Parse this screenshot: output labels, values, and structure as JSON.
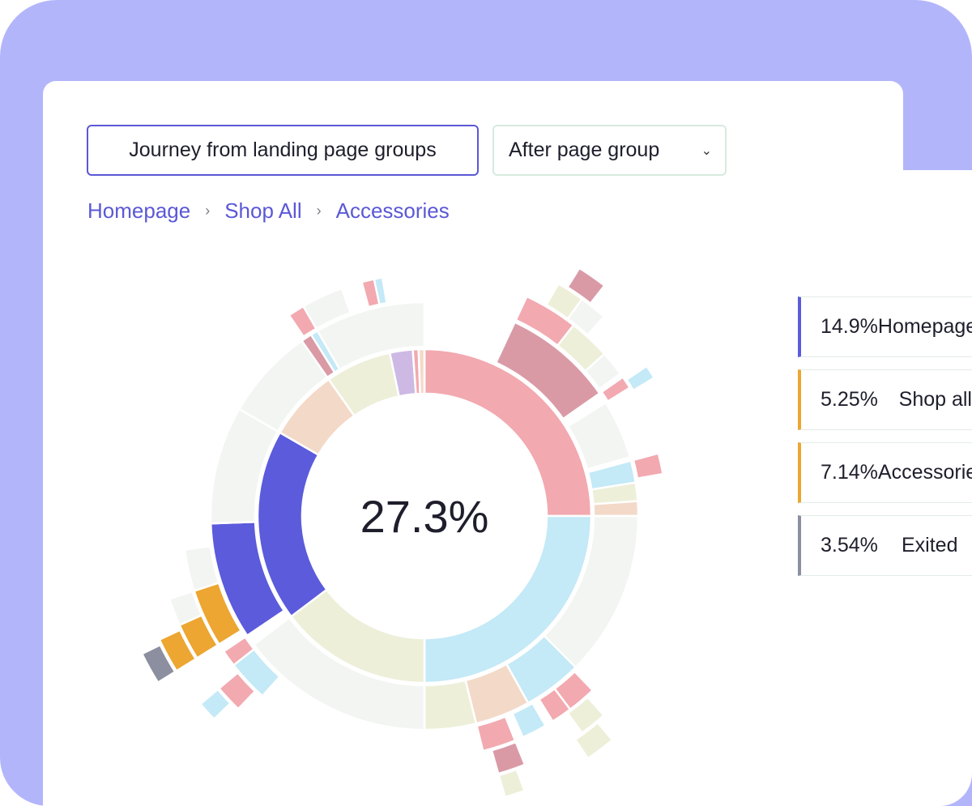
{
  "controls": {
    "journey_label": "Journey from landing page groups",
    "after_label": "After page group"
  },
  "breadcrumb": [
    "Homepage",
    "Shop All",
    "Accessories"
  ],
  "chart_data": {
    "type": "sunburst",
    "center_value": "27.3%",
    "colors": {
      "purple": "#5b5bdc",
      "orange": "#eca631",
      "pink": "#f2a9b0",
      "light_blue": "#c4e9f7",
      "cream": "#edefd9",
      "peach": "#f3d9c8",
      "mauve": "#d99aa6",
      "lavender": "#cdb9e4",
      "gray": "#8c8fa0",
      "faint": "#f2f5f1"
    },
    "legend": [
      {
        "value": "14.9%",
        "label": "Homepage",
        "color": "#5b5bdc"
      },
      {
        "value": "5.25%",
        "label": "Shop all",
        "color": "#eca631"
      },
      {
        "value": "7.14%",
        "label": "Accessories",
        "color": "#eca631"
      },
      {
        "value": "3.54%",
        "label": "Exited",
        "color": "#8c8fa0"
      }
    ],
    "rings": [
      [
        {
          "start": 0,
          "end": 90,
          "color": "pink"
        },
        {
          "start": 90,
          "end": 180,
          "color": "light_blue"
        },
        {
          "start": 180,
          "end": 233,
          "color": "cream"
        },
        {
          "start": 233,
          "end": 300,
          "color": "purple"
        },
        {
          "start": 300,
          "end": 325,
          "color": "peach"
        },
        {
          "start": 325,
          "end": 348,
          "color": "cream"
        },
        {
          "start": 348,
          "end": 356,
          "color": "lavender"
        },
        {
          "start": 356,
          "end": 358,
          "color": "pink"
        },
        {
          "start": 358,
          "end": 360,
          "color": "peach"
        }
      ],
      [
        {
          "start": 25,
          "end": 55,
          "color": "mauve"
        },
        {
          "start": 58,
          "end": 74,
          "color": "faint"
        },
        {
          "start": 75,
          "end": 81,
          "color": "light_blue"
        },
        {
          "start": 81,
          "end": 86,
          "color": "cream"
        },
        {
          "start": 86,
          "end": 90,
          "color": "peach"
        },
        {
          "start": 90,
          "end": 135,
          "color": "faint"
        },
        {
          "start": 135,
          "end": 151,
          "color": "light_blue"
        },
        {
          "start": 151,
          "end": 166,
          "color": "peach"
        },
        {
          "start": 166,
          "end": 180,
          "color": "cream"
        },
        {
          "start": 180,
          "end": 233,
          "color": "faint"
        },
        {
          "start": 236,
          "end": 268,
          "color": "purple"
        },
        {
          "start": 268,
          "end": 300,
          "color": "faint"
        },
        {
          "start": 300,
          "end": 325,
          "color": "faint"
        },
        {
          "start": 325,
          "end": 328,
          "color": "mauve"
        },
        {
          "start": 328,
          "end": 330,
          "color": "light_blue"
        },
        {
          "start": 330,
          "end": 360,
          "color": "faint"
        }
      ],
      [
        {
          "start": 25,
          "end": 38,
          "color": "pink"
        },
        {
          "start": 38,
          "end": 48,
          "color": "cream"
        },
        {
          "start": 48,
          "end": 54,
          "color": "faint"
        },
        {
          "start": 55,
          "end": 58,
          "color": "pink"
        },
        {
          "start": 75,
          "end": 80,
          "color": "pink"
        },
        {
          "start": 136,
          "end": 143,
          "color": "pink"
        },
        {
          "start": 143,
          "end": 148,
          "color": "pink"
        },
        {
          "start": 150,
          "end": 156,
          "color": "light_blue"
        },
        {
          "start": 158,
          "end": 166,
          "color": "pink"
        },
        {
          "start": 222,
          "end": 232,
          "color": "light_blue"
        },
        {
          "start": 232,
          "end": 236,
          "color": "pink"
        },
        {
          "start": 238,
          "end": 252,
          "color": "orange"
        },
        {
          "start": 252,
          "end": 262,
          "color": "faint"
        },
        {
          "start": 326,
          "end": 330,
          "color": "pink"
        },
        {
          "start": 330,
          "end": 340,
          "color": "faint"
        },
        {
          "start": 345,
          "end": 348,
          "color": "pink"
        },
        {
          "start": 348,
          "end": 350,
          "color": "light_blue"
        }
      ],
      [
        {
          "start": 30,
          "end": 36,
          "color": "cream"
        },
        {
          "start": 36,
          "end": 42,
          "color": "faint"
        },
        {
          "start": 56,
          "end": 59,
          "color": "light_blue"
        },
        {
          "start": 138,
          "end": 144,
          "color": "cream"
        },
        {
          "start": 158,
          "end": 164,
          "color": "mauve"
        },
        {
          "start": 224,
          "end": 230,
          "color": "pink"
        },
        {
          "start": 238,
          "end": 246,
          "color": "orange"
        },
        {
          "start": 246,
          "end": 252,
          "color": "faint"
        }
      ],
      [
        {
          "start": 32,
          "end": 38,
          "color": "mauve"
        },
        {
          "start": 140,
          "end": 146,
          "color": "cream"
        },
        {
          "start": 160,
          "end": 164,
          "color": "cream"
        },
        {
          "start": 226,
          "end": 230,
          "color": "light_blue"
        },
        {
          "start": 238,
          "end": 245,
          "color": "orange"
        }
      ],
      [
        {
          "start": 238,
          "end": 244,
          "color": "gray"
        }
      ]
    ]
  }
}
